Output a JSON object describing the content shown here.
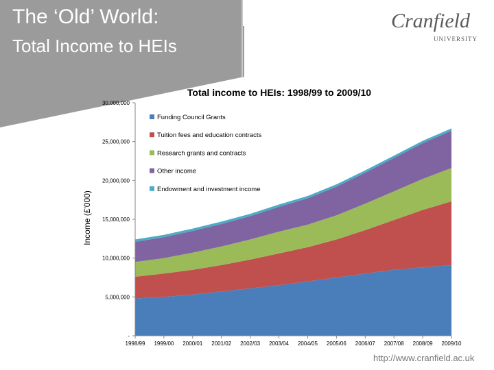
{
  "slide": {
    "title_line1": "The ‘Old’ World:",
    "title_line2": "Total Income to HEIs",
    "logo_name": "Cranfield",
    "logo_sub": "UNIVERSITY",
    "footer_url": "http://www.cranfield.ac.uk"
  },
  "colors": {
    "header_band": "#9b9b9b",
    "accent_line": "#c8c8c8"
  },
  "chart_data": {
    "type": "area",
    "stacked": true,
    "title": "Total income to HEIs: 1998/99 to 2009/10",
    "xlabel": "",
    "ylabel": "Income (£'000)",
    "ylim": [
      0,
      30000000
    ],
    "yticks": [
      0,
      5000000,
      10000000,
      15000000,
      20000000,
      25000000,
      30000000
    ],
    "ytick_labels": [
      "-",
      "5,000,000",
      "10,000,000",
      "15,000,000",
      "20,000,000",
      "25,000,000",
      "30,000,000"
    ],
    "grid": false,
    "legend_position": "top-left",
    "categories": [
      "1998/99",
      "1999/00",
      "2000/01",
      "2001/02",
      "2002/03",
      "2003/04",
      "2004/05",
      "2005/06",
      "2006/07",
      "2007/08",
      "2008/09",
      "2009/10"
    ],
    "series": [
      {
        "name": "Funding Council Grants",
        "color": "#4a7ebb",
        "values": [
          4800000,
          5000000,
          5300000,
          5700000,
          6100000,
          6500000,
          7000000,
          7500000,
          8000000,
          8500000,
          8800000,
          9100000
        ]
      },
      {
        "name": "Tuition fees and education contracts",
        "color": "#c0504d",
        "values": [
          2800000,
          3000000,
          3200000,
          3400000,
          3700000,
          4100000,
          4400000,
          4900000,
          5600000,
          6400000,
          7400000,
          8200000
        ]
      },
      {
        "name": "Research grants and contracts",
        "color": "#9bbb59",
        "values": [
          1900000,
          2000000,
          2200000,
          2400000,
          2600000,
          2800000,
          2900000,
          3100000,
          3400000,
          3700000,
          4000000,
          4300000
        ]
      },
      {
        "name": "Other income",
        "color": "#8064a2",
        "values": [
          2600000,
          2700000,
          2800000,
          2900000,
          3000000,
          3200000,
          3400000,
          3700000,
          4000000,
          4300000,
          4600000,
          4800000
        ]
      },
      {
        "name": "Endowment and investment income",
        "color": "#4bacc6",
        "values": [
          300000,
          300000,
          300000,
          300000,
          300000,
          300000,
          300000,
          300000,
          300000,
          300000,
          300000,
          300000
        ]
      }
    ]
  }
}
